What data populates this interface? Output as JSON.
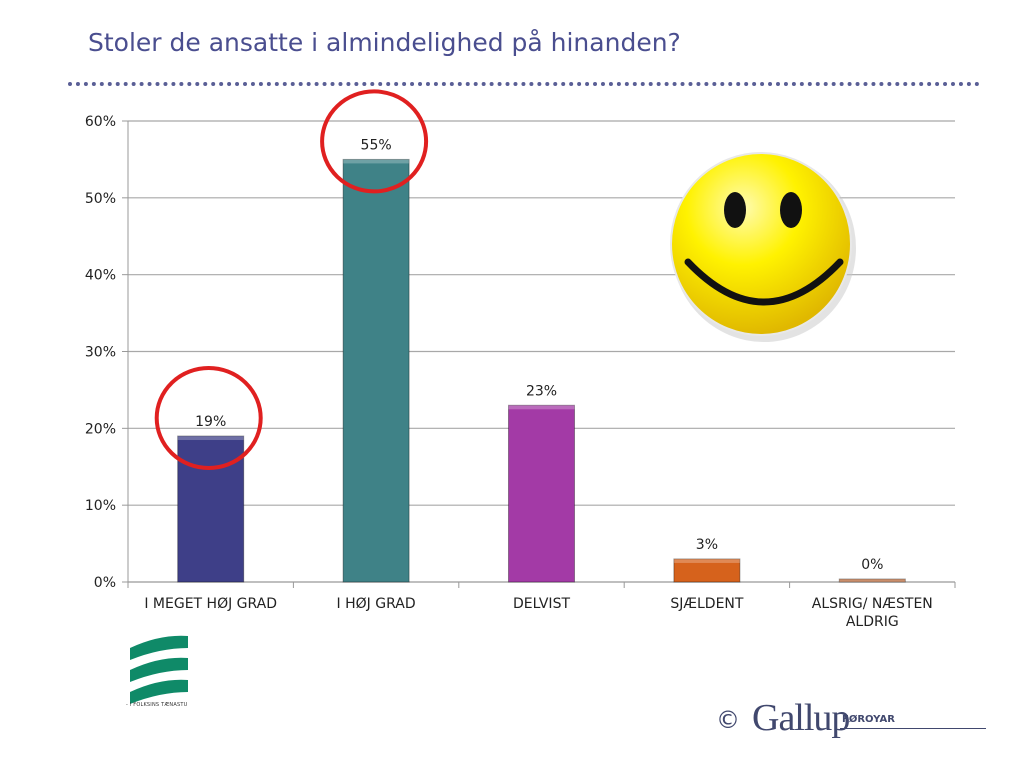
{
  "slide": {
    "title": "Stoler de ansatte i almindelighed på hinanden?"
  },
  "chart_data": {
    "type": "bar",
    "categories": [
      "I MEGET HØJ GRAD",
      "I HØJ GRAD",
      "DELVIST",
      "SJÆLDENT",
      "ALSRIG/ NÆSTEN ALDRIG"
    ],
    "values": [
      19,
      55,
      23,
      3,
      0
    ],
    "data_labels": [
      "19%",
      "55%",
      "23%",
      "3%",
      "0%"
    ],
    "ylim": [
      0,
      60
    ],
    "yticks": [
      0,
      10,
      20,
      30,
      40,
      50,
      60
    ],
    "ytick_labels": [
      "0%",
      "10%",
      "20%",
      "30%",
      "40%",
      "50%",
      "60%"
    ],
    "grid": true,
    "colors": [
      "#3e3f88",
      "#3f8287",
      "#a33aa6",
      "#d6621c",
      "#b8693a"
    ],
    "highlight_circles": [
      0,
      1
    ],
    "highlight_color": "#e02020",
    "decoration": "smiley-face-icon"
  },
  "footer": {
    "left_logo_text": "- I FOLKSINS TÆNASTU",
    "copyright": "©",
    "brand": "Gallup",
    "brand_sub": "FØROYAR"
  }
}
